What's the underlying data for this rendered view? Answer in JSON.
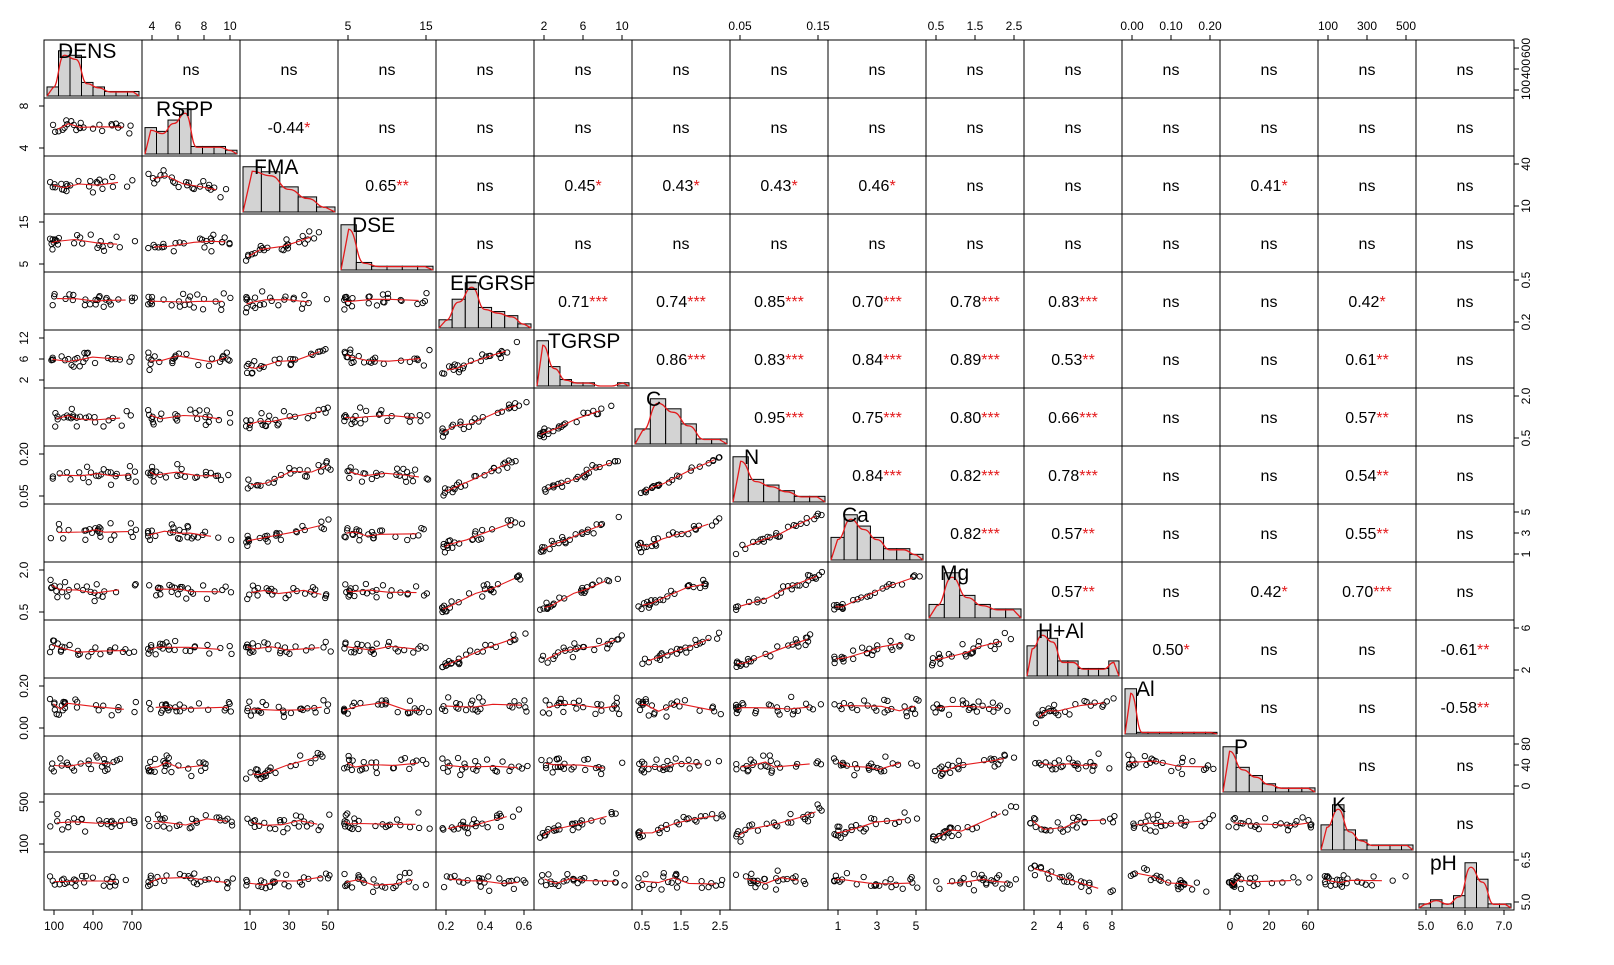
{
  "chart_data": {
    "type": "scatter-matrix",
    "title": "",
    "variables": [
      "DENS",
      "RSPP",
      "FMA",
      "DSE",
      "EEGRSP",
      "TGRSP",
      "C",
      "N",
      "Ca",
      "Mg",
      "H+Al",
      "Al",
      "P",
      "K",
      "pH"
    ],
    "variable_labels": [
      "DENS",
      "RSPP",
      "FMA",
      "DSE",
      "EEGRSP",
      "TGRSP",
      "C",
      "N",
      "Ca",
      "Mg",
      "H+Al",
      "Al",
      "P",
      "K",
      "pH"
    ],
    "axis_ticks": {
      "bottom": [
        {
          "var": "DENS",
          "ticks": [
            "100",
            "400",
            "700"
          ]
        },
        {
          "var": "FMA",
          "ticks": [
            "10",
            "30",
            "50"
          ]
        },
        {
          "var": "EEGRSP",
          "ticks": [
            "0.2",
            "0.4",
            "0.6"
          ]
        },
        {
          "var": "C",
          "ticks": [
            "0.5",
            "1.5",
            "2.5"
          ]
        },
        {
          "var": "Ca",
          "ticks": [
            "1",
            "3",
            "5"
          ]
        },
        {
          "var": "H+Al",
          "ticks": [
            "2",
            "4",
            "6",
            "8"
          ]
        },
        {
          "var": "P",
          "ticks": [
            "0",
            "20",
            "60"
          ]
        },
        {
          "var": "pH",
          "ticks": [
            "5.0",
            "6.0",
            "7.0"
          ]
        }
      ],
      "top": [
        {
          "var": "RSPP",
          "ticks": [
            "4",
            "6",
            "8",
            "10"
          ]
        },
        {
          "var": "DSE",
          "ticks": [
            "5",
            "15"
          ]
        },
        {
          "var": "TGRSP",
          "ticks": [
            "2",
            "6",
            "10"
          ]
        },
        {
          "var": "N",
          "ticks": [
            "0.05",
            "0.15"
          ]
        },
        {
          "var": "Mg",
          "ticks": [
            "0.5",
            "1.5",
            "2.5"
          ]
        },
        {
          "var": "Al",
          "ticks": [
            "0.00",
            "0.10",
            "0.20"
          ]
        },
        {
          "var": "K",
          "ticks": [
            "100",
            "300",
            "500"
          ]
        }
      ],
      "left": [
        {
          "var": "RSPP",
          "ticks": [
            "4",
            "8"
          ]
        },
        {
          "var": "DSE",
          "ticks": [
            "5",
            "15"
          ]
        },
        {
          "var": "TGRSP",
          "ticks": [
            "2",
            "6",
            "12"
          ]
        },
        {
          "var": "N",
          "ticks": [
            "0.05",
            "0.20"
          ]
        },
        {
          "var": "Mg",
          "ticks": [
            "0.5",
            "2.0"
          ]
        },
        {
          "var": "Al",
          "ticks": [
            "0.00",
            "0.20"
          ]
        },
        {
          "var": "K",
          "ticks": [
            "100",
            "500"
          ]
        }
      ],
      "right": [
        {
          "var": "DENS",
          "ticks": [
            "100",
            "400",
            "600"
          ]
        },
        {
          "var": "FMA",
          "ticks": [
            "10",
            "40"
          ]
        },
        {
          "var": "EEGRSP",
          "ticks": [
            "0.2",
            "0.5"
          ]
        },
        {
          "var": "C",
          "ticks": [
            "0.5",
            "2.0"
          ]
        },
        {
          "var": "Ca",
          "ticks": [
            "1",
            "3",
            "5"
          ]
        },
        {
          "var": "H+Al",
          "ticks": [
            "2",
            "6"
          ]
        },
        {
          "var": "P",
          "ticks": [
            "0",
            "40",
            "80"
          ]
        },
        {
          "var": "pH",
          "ticks": [
            "5.0",
            "6.5"
          ]
        }
      ]
    },
    "correlations": [
      {
        "row": "RSPP",
        "col": "FMA",
        "r": "-0.44",
        "sig": "*"
      },
      {
        "row": "FMA",
        "col": "DSE",
        "r": "0.65",
        "sig": "**"
      },
      {
        "row": "FMA",
        "col": "TGRSP",
        "r": "0.45",
        "sig": "*"
      },
      {
        "row": "FMA",
        "col": "C",
        "r": "0.43",
        "sig": "*"
      },
      {
        "row": "FMA",
        "col": "N",
        "r": "0.43",
        "sig": "*"
      },
      {
        "row": "FMA",
        "col": "Ca",
        "r": "0.46",
        "sig": "*"
      },
      {
        "row": "FMA",
        "col": "P",
        "r": "0.41",
        "sig": "*"
      },
      {
        "row": "EEGRSP",
        "col": "TGRSP",
        "r": "0.71",
        "sig": "***"
      },
      {
        "row": "EEGRSP",
        "col": "C",
        "r": "0.74",
        "sig": "***"
      },
      {
        "row": "EEGRSP",
        "col": "N",
        "r": "0.85",
        "sig": "***"
      },
      {
        "row": "EEGRSP",
        "col": "Ca",
        "r": "0.70",
        "sig": "***"
      },
      {
        "row": "EEGRSP",
        "col": "Mg",
        "r": "0.78",
        "sig": "***"
      },
      {
        "row": "EEGRSP",
        "col": "H+Al",
        "r": "0.83",
        "sig": "***"
      },
      {
        "row": "EEGRSP",
        "col": "K",
        "r": "0.42",
        "sig": "*"
      },
      {
        "row": "TGRSP",
        "col": "C",
        "r": "0.86",
        "sig": "***"
      },
      {
        "row": "TGRSP",
        "col": "N",
        "r": "0.83",
        "sig": "***"
      },
      {
        "row": "TGRSP",
        "col": "Ca",
        "r": "0.84",
        "sig": "***"
      },
      {
        "row": "TGRSP",
        "col": "Mg",
        "r": "0.89",
        "sig": "***"
      },
      {
        "row": "TGRSP",
        "col": "H+Al",
        "r": "0.53",
        "sig": "**"
      },
      {
        "row": "TGRSP",
        "col": "K",
        "r": "0.61",
        "sig": "**"
      },
      {
        "row": "C",
        "col": "N",
        "r": "0.95",
        "sig": "***"
      },
      {
        "row": "C",
        "col": "Ca",
        "r": "0.75",
        "sig": "***"
      },
      {
        "row": "C",
        "col": "Mg",
        "r": "0.80",
        "sig": "***"
      },
      {
        "row": "C",
        "col": "H+Al",
        "r": "0.66",
        "sig": "***"
      },
      {
        "row": "C",
        "col": "K",
        "r": "0.57",
        "sig": "**"
      },
      {
        "row": "N",
        "col": "Ca",
        "r": "0.84",
        "sig": "***"
      },
      {
        "row": "N",
        "col": "Mg",
        "r": "0.82",
        "sig": "***"
      },
      {
        "row": "N",
        "col": "H+Al",
        "r": "0.78",
        "sig": "***"
      },
      {
        "row": "N",
        "col": "K",
        "r": "0.54",
        "sig": "**"
      },
      {
        "row": "Ca",
        "col": "Mg",
        "r": "0.82",
        "sig": "***"
      },
      {
        "row": "Ca",
        "col": "H+Al",
        "r": "0.57",
        "sig": "**"
      },
      {
        "row": "Ca",
        "col": "K",
        "r": "0.55",
        "sig": "**"
      },
      {
        "row": "Mg",
        "col": "H+Al",
        "r": "0.57",
        "sig": "**"
      },
      {
        "row": "Mg",
        "col": "P",
        "r": "0.42",
        "sig": "*"
      },
      {
        "row": "Mg",
        "col": "K",
        "r": "0.70",
        "sig": "***"
      },
      {
        "row": "H+Al",
        "col": "Al",
        "r": "0.50",
        "sig": "*"
      },
      {
        "row": "H+Al",
        "col": "pH",
        "r": "-0.61",
        "sig": "**"
      },
      {
        "row": "Al",
        "col": "pH",
        "r": "-0.58",
        "sig": "**"
      }
    ],
    "nonsignificant_label": "ns",
    "histogram_bins": {
      "DENS": [
        2,
        10,
        9,
        3,
        2,
        1,
        1,
        1
      ],
      "RSPP": [
        7,
        6,
        9,
        12,
        2,
        2,
        2,
        1
      ],
      "FMA": [
        9,
        8,
        5,
        3,
        1
      ],
      "DSE": [
        12,
        2,
        1,
        1,
        1,
        1
      ],
      "EEGRSP": [
        2,
        7,
        11,
        5,
        4,
        3,
        1
      ],
      "TGRSP": [
        14,
        6,
        2,
        1,
        1,
        0,
        0,
        1
      ],
      "C": [
        3,
        9,
        7,
        4,
        1,
        1
      ],
      "N": [
        8,
        4,
        3,
        2,
        1,
        1
      ],
      "Ca": [
        4,
        8,
        6,
        4,
        2,
        2,
        1
      ],
      "Mg": [
        3,
        10,
        5,
        3,
        2,
        2
      ],
      "H+Al": [
        4,
        6,
        5,
        2,
        2,
        1,
        1,
        1,
        2
      ],
      "Al": [
        27,
        1,
        1,
        1,
        1,
        1,
        1,
        1
      ],
      "P": [
        11,
        6,
        4,
        2,
        1,
        1,
        1
      ],
      "K": [
        5,
        9,
        4,
        2,
        1,
        1,
        1,
        1
      ],
      "pH": [
        1,
        2,
        1,
        3,
        11,
        7,
        1,
        1
      ]
    }
  }
}
